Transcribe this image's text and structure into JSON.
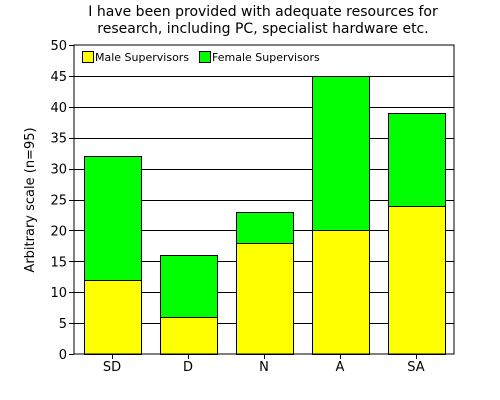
{
  "chart_data": {
    "type": "bar",
    "stacked": true,
    "title_lines": [
      "I have been provided with adequate resources for",
      "research, including PC, specialist hardware etc."
    ],
    "xlabel": "",
    "ylabel": "Arbitrary scale (n=95)",
    "categories": [
      "SD",
      "D",
      "N",
      "A",
      "SA"
    ],
    "series": [
      {
        "name": "Male Supervisors",
        "values": [
          12,
          6,
          18,
          20,
          24
        ],
        "color": "#ffff00"
      },
      {
        "name": "Female Supervisors",
        "values": [
          20,
          10,
          5,
          25,
          15
        ],
        "color": "#00ff00"
      }
    ],
    "ylim": [
      0,
      50
    ],
    "yticks": [
      0,
      5,
      10,
      15,
      20,
      25,
      30,
      35,
      40,
      45,
      50
    ],
    "grid": "horizontal",
    "legend_position": "top-left"
  }
}
